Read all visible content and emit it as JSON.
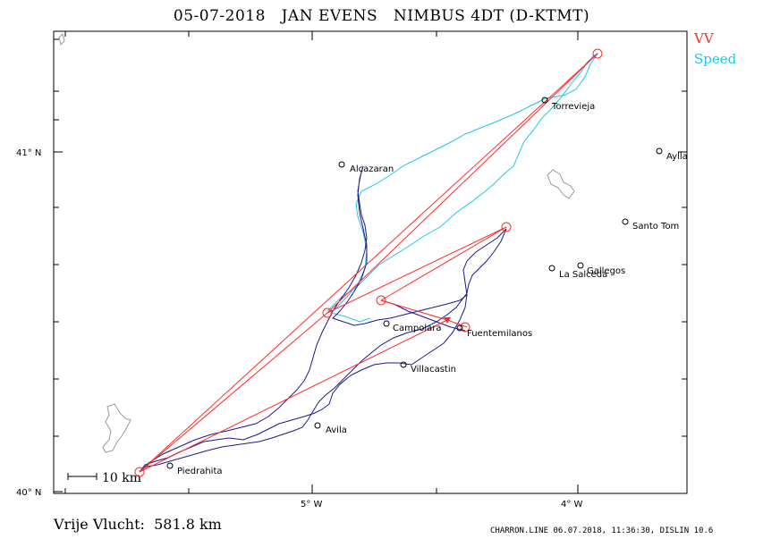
{
  "header": {
    "date": "05-07-2018",
    "pilot": "JAN EVENS",
    "glider": "NIMBUS 4DT (D-KTMT)"
  },
  "legend": {
    "vv_label": "VV",
    "vv_color": "#ff2a2a",
    "speed_label": "Speed",
    "speed_color": "#20c8e6"
  },
  "axes": {
    "lat_top": "41° N",
    "lat_bottom": "40° N",
    "lon_left": "5° W",
    "lon_right": "4° W"
  },
  "scale_bar": {
    "label": "10 km"
  },
  "places": [
    {
      "name": "Torrevieja"
    },
    {
      "name": "Alcazaran"
    },
    {
      "name": "Aylla"
    },
    {
      "name": "Santo Tom"
    },
    {
      "name": "Gallegos"
    },
    {
      "name": "La Salceda"
    },
    {
      "name": "Campolara"
    },
    {
      "name": "Fuentemilanos"
    },
    {
      "name": "Villacastin"
    },
    {
      "name": "Avila"
    },
    {
      "name": "Piedrahita"
    }
  ],
  "footer": {
    "distance_label": "Vrije Vlucht:",
    "distance_value": "581.8 km",
    "credit": "CHARRON.LINE 06.07.2018, 11:36:30, DISLIN 10.6"
  }
}
